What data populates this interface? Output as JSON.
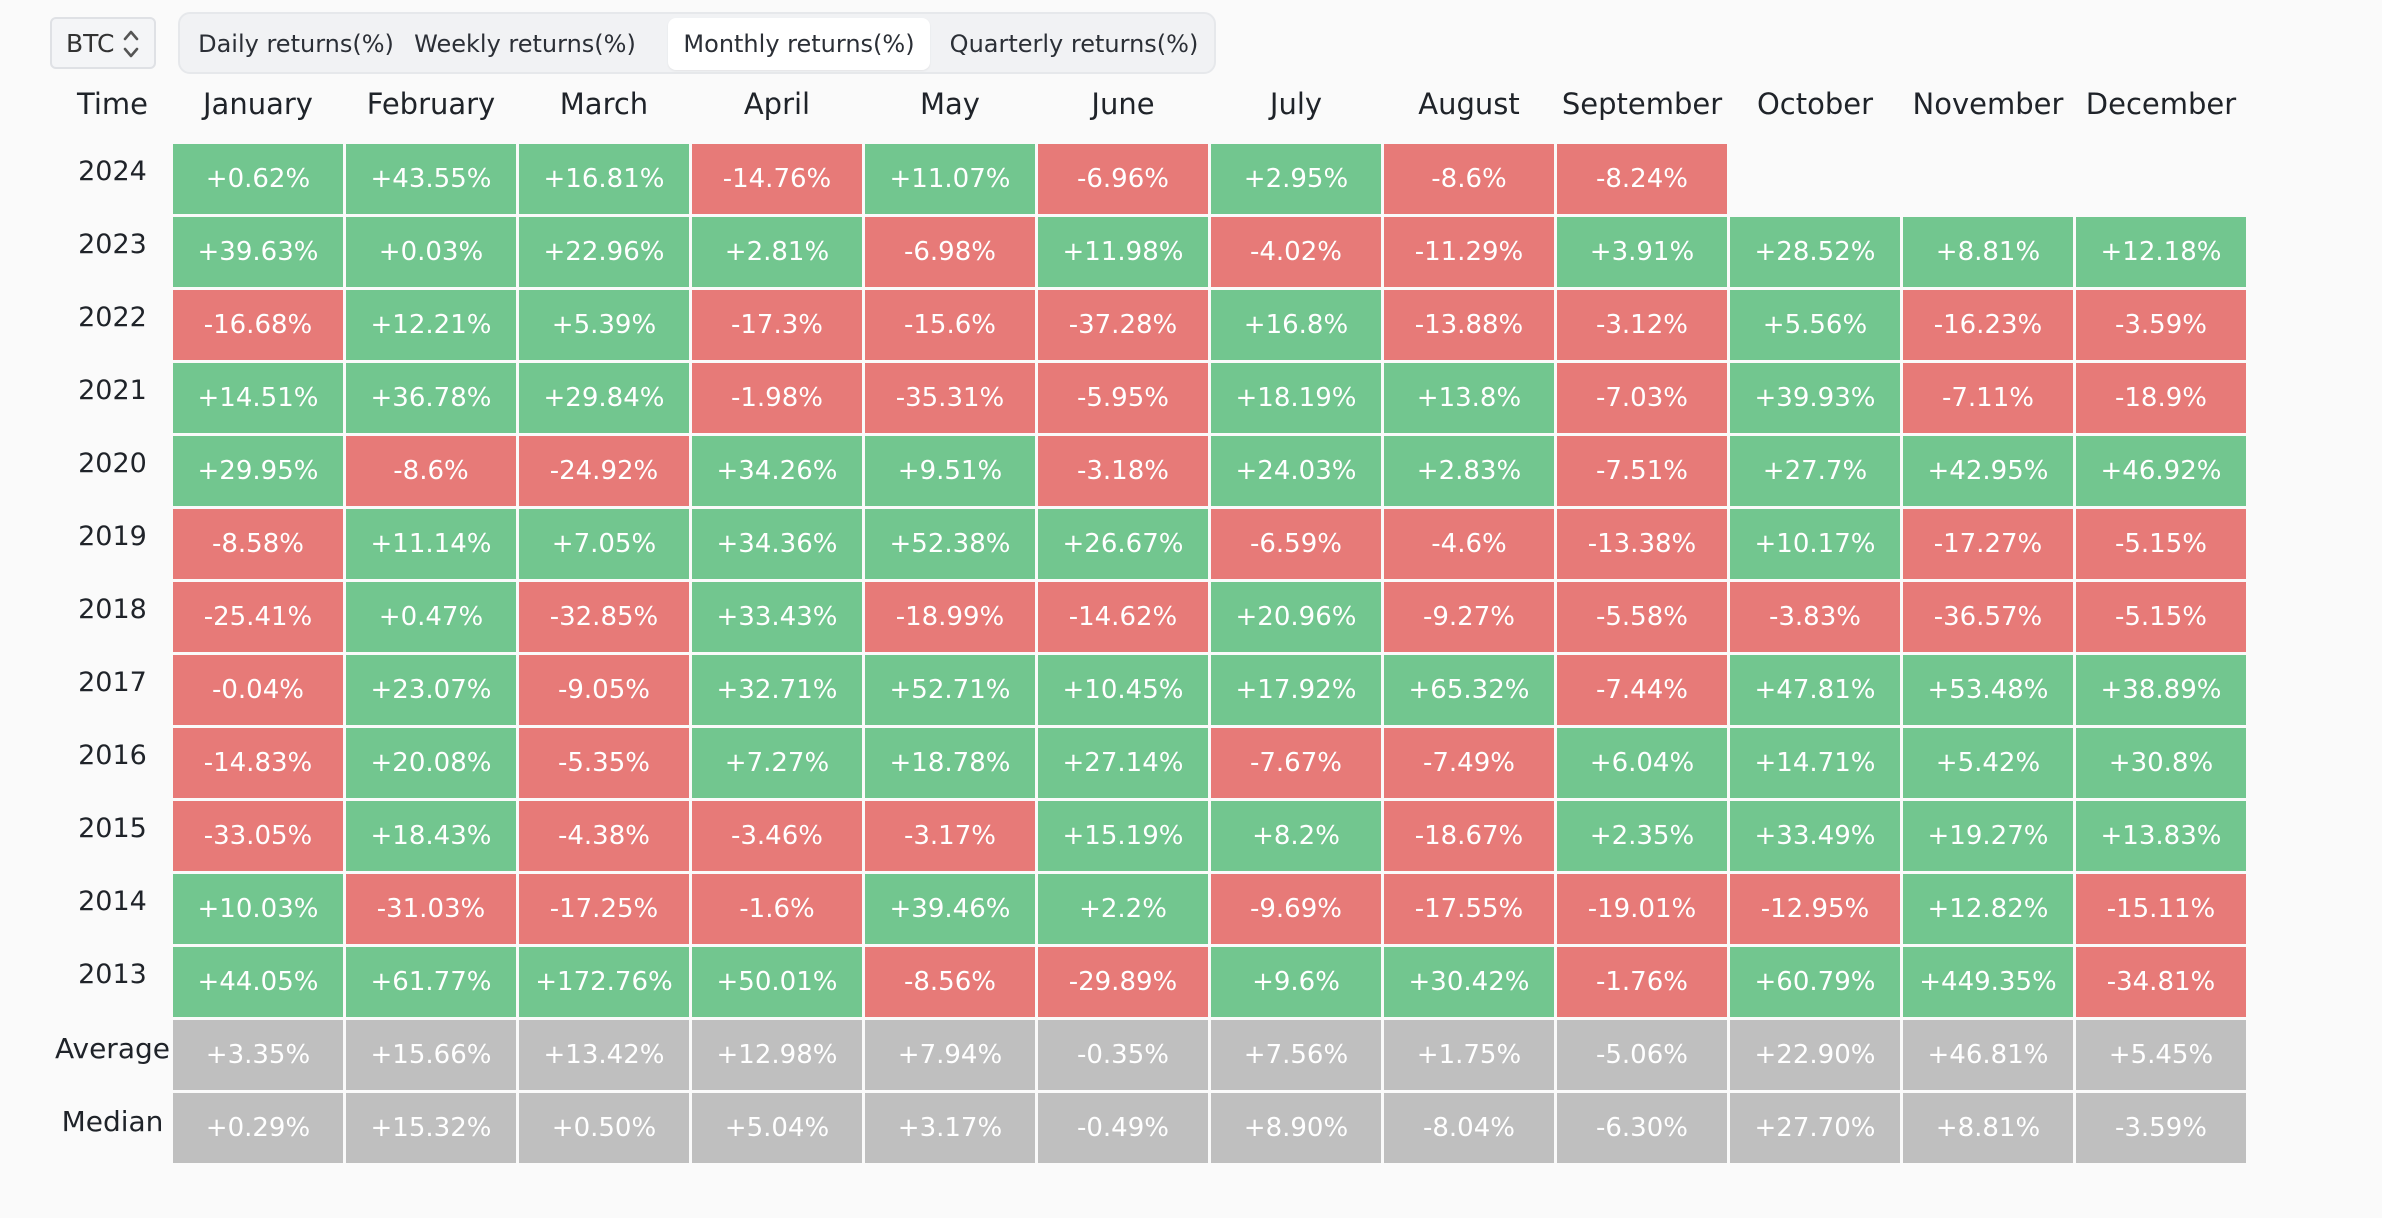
{
  "controls": {
    "asset_selected": "BTC",
    "tabs": [
      {
        "label": "Daily returns(%)",
        "active": false
      },
      {
        "label": "Weekly returns(%)",
        "active": false
      },
      {
        "label": "Monthly returns(%)",
        "active": true
      },
      {
        "label": "Quarterly returns(%)",
        "active": false
      }
    ]
  },
  "colors": {
    "positive": "#72c68f",
    "negative": "#e77a78",
    "summary": "#bfbfbf"
  },
  "table": {
    "time_header": "Time",
    "months": [
      "January",
      "February",
      "March",
      "April",
      "May",
      "June",
      "July",
      "August",
      "September",
      "October",
      "November",
      "December"
    ],
    "years": [
      {
        "year": "2024",
        "values": [
          "+0.62%",
          "+43.55%",
          "+16.81%",
          "-14.76%",
          "+11.07%",
          "-6.96%",
          "+2.95%",
          "-8.6%",
          "-8.24%",
          "",
          "",
          ""
        ]
      },
      {
        "year": "2023",
        "values": [
          "+39.63%",
          "+0.03%",
          "+22.96%",
          "+2.81%",
          "-6.98%",
          "+11.98%",
          "-4.02%",
          "-11.29%",
          "+3.91%",
          "+28.52%",
          "+8.81%",
          "+12.18%"
        ]
      },
      {
        "year": "2022",
        "values": [
          "-16.68%",
          "+12.21%",
          "+5.39%",
          "-17.3%",
          "-15.6%",
          "-37.28%",
          "+16.8%",
          "-13.88%",
          "-3.12%",
          "+5.56%",
          "-16.23%",
          "-3.59%"
        ]
      },
      {
        "year": "2021",
        "values": [
          "+14.51%",
          "+36.78%",
          "+29.84%",
          "-1.98%",
          "-35.31%",
          "-5.95%",
          "+18.19%",
          "+13.8%",
          "-7.03%",
          "+39.93%",
          "-7.11%",
          "-18.9%"
        ]
      },
      {
        "year": "2020",
        "values": [
          "+29.95%",
          "-8.6%",
          "-24.92%",
          "+34.26%",
          "+9.51%",
          "-3.18%",
          "+24.03%",
          "+2.83%",
          "-7.51%",
          "+27.7%",
          "+42.95%",
          "+46.92%"
        ]
      },
      {
        "year": "2019",
        "values": [
          "-8.58%",
          "+11.14%",
          "+7.05%",
          "+34.36%",
          "+52.38%",
          "+26.67%",
          "-6.59%",
          "-4.6%",
          "-13.38%",
          "+10.17%",
          "-17.27%",
          "-5.15%"
        ]
      },
      {
        "year": "2018",
        "values": [
          "-25.41%",
          "+0.47%",
          "-32.85%",
          "+33.43%",
          "-18.99%",
          "-14.62%",
          "+20.96%",
          "-9.27%",
          "-5.58%",
          "-3.83%",
          "-36.57%",
          "-5.15%"
        ]
      },
      {
        "year": "2017",
        "values": [
          "-0.04%",
          "+23.07%",
          "-9.05%",
          "+32.71%",
          "+52.71%",
          "+10.45%",
          "+17.92%",
          "+65.32%",
          "-7.44%",
          "+47.81%",
          "+53.48%",
          "+38.89%"
        ]
      },
      {
        "year": "2016",
        "values": [
          "-14.83%",
          "+20.08%",
          "-5.35%",
          "+7.27%",
          "+18.78%",
          "+27.14%",
          "-7.67%",
          "-7.49%",
          "+6.04%",
          "+14.71%",
          "+5.42%",
          "+30.8%"
        ]
      },
      {
        "year": "2015",
        "values": [
          "-33.05%",
          "+18.43%",
          "-4.38%",
          "-3.46%",
          "-3.17%",
          "+15.19%",
          "+8.2%",
          "-18.67%",
          "+2.35%",
          "+33.49%",
          "+19.27%",
          "+13.83%"
        ]
      },
      {
        "year": "2014",
        "values": [
          "+10.03%",
          "-31.03%",
          "-17.25%",
          "-1.6%",
          "+39.46%",
          "+2.2%",
          "-9.69%",
          "-17.55%",
          "-19.01%",
          "-12.95%",
          "+12.82%",
          "-15.11%"
        ]
      },
      {
        "year": "2013",
        "values": [
          "+44.05%",
          "+61.77%",
          "+172.76%",
          "+50.01%",
          "-8.56%",
          "-29.89%",
          "+9.6%",
          "+30.42%",
          "-1.76%",
          "+60.79%",
          "+449.35%",
          "-34.81%"
        ]
      }
    ],
    "summary": [
      {
        "label": "Average",
        "values": [
          "+3.35%",
          "+15.66%",
          "+13.42%",
          "+12.98%",
          "+7.94%",
          "-0.35%",
          "+7.56%",
          "+1.75%",
          "-5.06%",
          "+22.90%",
          "+46.81%",
          "+5.45%"
        ]
      },
      {
        "label": "Median",
        "values": [
          "+0.29%",
          "+15.32%",
          "+0.50%",
          "+5.04%",
          "+3.17%",
          "-0.49%",
          "+8.90%",
          "-8.04%",
          "-6.30%",
          "+27.70%",
          "+8.81%",
          "-3.59%"
        ]
      }
    ]
  }
}
